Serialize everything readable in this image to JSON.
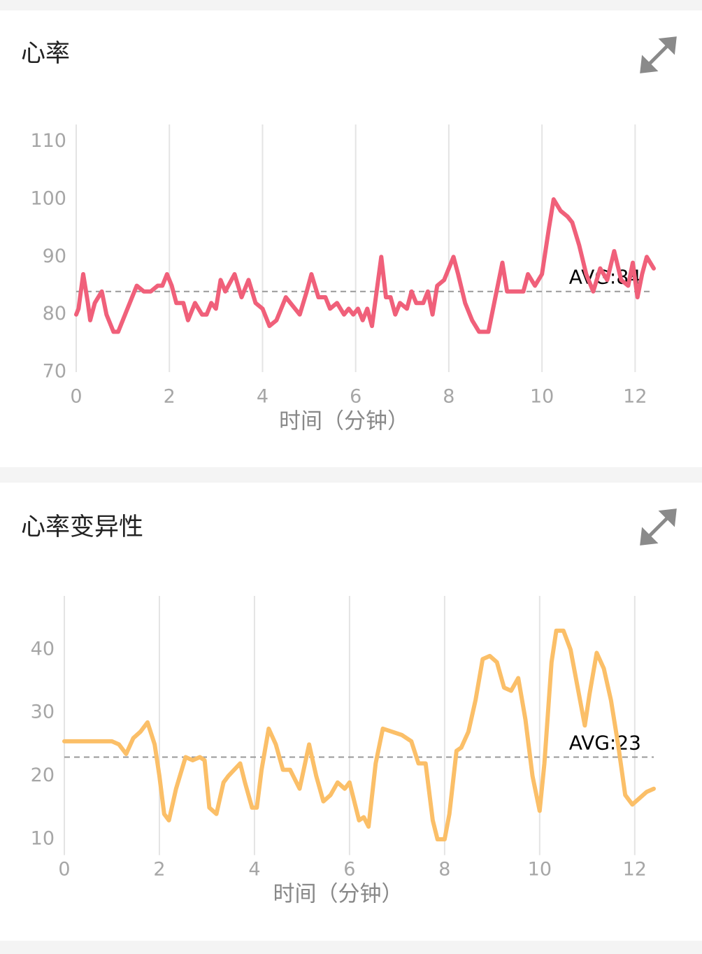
{
  "chart_data": [
    {
      "type": "line",
      "title": "心率",
      "xlabel": "时间（分钟）",
      "color": "#f0607a",
      "xlim": [
        0,
        12.4
      ],
      "ylim": [
        70,
        113
      ],
      "xticks": [
        0,
        2,
        4,
        6,
        8,
        10,
        12
      ],
      "yticks": [
        70,
        80,
        90,
        100,
        110
      ],
      "grid": "x",
      "avg": 84,
      "avg_label": "AVG:84",
      "x": [
        0,
        0.05,
        0.15,
        0.25,
        0.3,
        0.4,
        0.55,
        0.65,
        0.8,
        0.9,
        1.05,
        1.2,
        1.3,
        1.45,
        1.6,
        1.75,
        1.85,
        1.95,
        2.05,
        2.15,
        2.3,
        2.4,
        2.55,
        2.7,
        2.8,
        2.9,
        3.0,
        3.1,
        3.2,
        3.4,
        3.55,
        3.7,
        3.85,
        4.0,
        4.15,
        4.3,
        4.5,
        4.6,
        4.8,
        4.95,
        5.05,
        5.2,
        5.35,
        5.45,
        5.6,
        5.75,
        5.85,
        5.95,
        6.05,
        6.15,
        6.25,
        6.35,
        6.55,
        6.65,
        6.75,
        6.85,
        6.95,
        7.1,
        7.2,
        7.3,
        7.45,
        7.55,
        7.65,
        7.75,
        7.9,
        8.1,
        8.2,
        8.35,
        8.5,
        8.65,
        8.85,
        9.0,
        9.15,
        9.25,
        9.45,
        9.6,
        9.7,
        9.85,
        10.0,
        10.15,
        10.25,
        10.4,
        10.55,
        10.65,
        10.8,
        10.95,
        11.1,
        11.25,
        11.4,
        11.55,
        11.7,
        11.85,
        11.95,
        12.05,
        12.15,
        12.25,
        12.4
      ],
      "values": [
        80,
        81,
        87,
        82,
        79,
        82,
        84,
        80,
        77,
        77,
        80,
        83,
        85,
        84,
        84,
        85,
        85,
        87,
        85,
        82,
        82,
        79,
        82,
        80,
        80,
        82,
        81,
        86,
        84,
        87,
        83,
        86,
        82,
        81,
        78,
        79,
        83,
        82,
        80,
        84,
        87,
        83,
        83,
        81,
        82,
        80,
        81,
        80,
        81,
        79,
        81,
        78,
        90,
        83,
        83,
        80,
        82,
        81,
        84,
        82,
        82,
        84,
        80,
        85,
        86,
        90,
        87,
        82,
        79,
        77,
        77,
        83,
        89,
        84,
        84,
        84,
        87,
        85,
        87,
        95,
        100,
        98,
        97,
        96,
        92,
        87,
        84,
        88,
        86,
        91,
        86,
        85,
        89,
        83,
        87,
        90,
        88
      ]
    },
    {
      "type": "line",
      "title": "心率变异性",
      "xlabel": "时间（分钟）",
      "color": "#fbbf68",
      "xlim": [
        0,
        12.4
      ],
      "ylim": [
        7.5,
        48.5
      ],
      "xticks": [
        0,
        2,
        4,
        6,
        8,
        10,
        12
      ],
      "yticks": [
        10,
        20,
        30,
        40
      ],
      "grid": "x",
      "avg": 23,
      "avg_label": "AVG:23",
      "x": [
        0,
        0.5,
        1.0,
        1.15,
        1.3,
        1.45,
        1.6,
        1.75,
        1.9,
        2.0,
        2.1,
        2.2,
        2.35,
        2.55,
        2.7,
        2.85,
        2.95,
        3.05,
        3.2,
        3.35,
        3.45,
        3.7,
        3.8,
        3.95,
        4.05,
        4.15,
        4.3,
        4.45,
        4.6,
        4.75,
        4.95,
        5.15,
        5.3,
        5.45,
        5.6,
        5.75,
        5.9,
        6.0,
        6.1,
        6.2,
        6.3,
        6.4,
        6.55,
        6.7,
        6.9,
        7.1,
        7.3,
        7.45,
        7.6,
        7.75,
        7.85,
        8.0,
        8.1,
        8.25,
        8.35,
        8.5,
        8.65,
        8.8,
        8.95,
        9.1,
        9.25,
        9.4,
        9.55,
        9.7,
        9.85,
        10.0,
        10.1,
        10.25,
        10.35,
        10.5,
        10.65,
        10.8,
        10.95,
        11.05,
        11.2,
        11.35,
        11.5,
        11.65,
        11.8,
        11.95,
        12.1,
        12.25,
        12.4
      ],
      "values": [
        25.5,
        25.5,
        25.5,
        25,
        23.5,
        26,
        27,
        28.5,
        25,
        20,
        14,
        13,
        18,
        23,
        22.5,
        23,
        22.5,
        15,
        14,
        19,
        20,
        22,
        19,
        15,
        15,
        21,
        27.5,
        25,
        21,
        21,
        18,
        25,
        20,
        16,
        17,
        19,
        18,
        19,
        16,
        13,
        13.5,
        12,
        22,
        27.5,
        27,
        26.5,
        25.5,
        22,
        22,
        13,
        10,
        10,
        14,
        24,
        24.5,
        27,
        32,
        38.5,
        39,
        38,
        34,
        33.5,
        35.5,
        29,
        20,
        14.5,
        22,
        38,
        43,
        43,
        40,
        34,
        28,
        33,
        39.5,
        37,
        32,
        25,
        17,
        15.5,
        16.5,
        17.5,
        18
      ]
    }
  ]
}
